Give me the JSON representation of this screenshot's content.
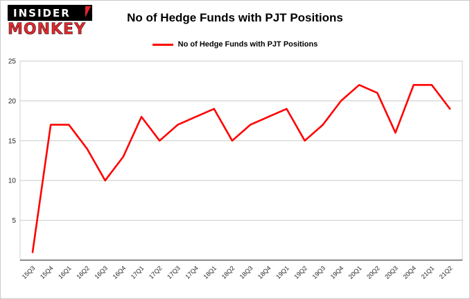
{
  "header": {
    "logo_top": "INSIDER",
    "logo_bottom": "MONKEY",
    "title": "No of Hedge Funds with PJT Positions"
  },
  "legend": {
    "label": "No of Hedge Funds with PJT Positions",
    "color": "#fe0000"
  },
  "chart_data": {
    "type": "line",
    "title": "No of Hedge Funds with PJT Positions",
    "categories": [
      "15Q3",
      "15Q4",
      "16Q1",
      "16Q2",
      "16Q3",
      "16Q4",
      "17Q1",
      "17Q2",
      "17Q3",
      "17Q4",
      "18Q1",
      "18Q2",
      "18Q3",
      "18Q4",
      "19Q1",
      "19Q2",
      "19Q3",
      "19Q4",
      "20Q1",
      "20Q2",
      "20Q3",
      "20Q4",
      "21Q1",
      "21Q2"
    ],
    "series": [
      {
        "name": "No of Hedge Funds with PJT Positions",
        "color": "#fe0000",
        "values": [
          1,
          17,
          17,
          14,
          10,
          13,
          18,
          15,
          17,
          18,
          19,
          15,
          17,
          18,
          19,
          15,
          17,
          20,
          22,
          21,
          16,
          22,
          22,
          19
        ]
      }
    ],
    "xlabel": "",
    "ylabel": "",
    "ylim": [
      0,
      25
    ],
    "yticks": [
      5,
      10,
      15,
      20,
      25
    ],
    "grid": true,
    "grid_color": "#c3cdc3",
    "axis_color": "#444444",
    "legend_position": "top"
  }
}
